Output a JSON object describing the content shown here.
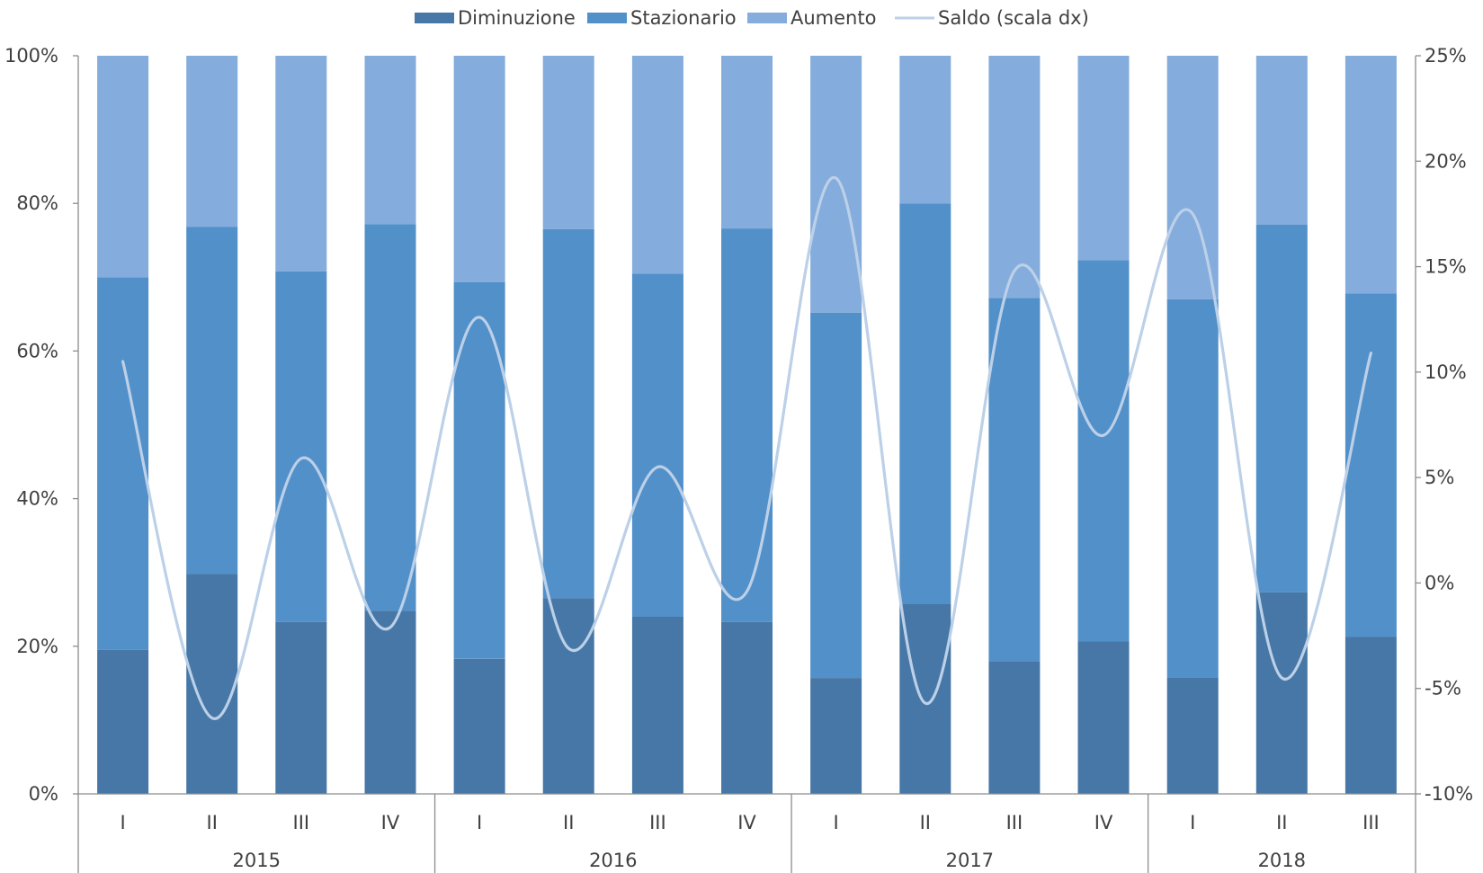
{
  "chart_data": {
    "type": "bar",
    "stacked": true,
    "combined_with": "line",
    "categories": [
      "I",
      "II",
      "III",
      "IV",
      "I",
      "II",
      "III",
      "IV",
      "I",
      "II",
      "III",
      "IV",
      "I",
      "II",
      "III"
    ],
    "category_groups": [
      {
        "label": "2015",
        "count": 4
      },
      {
        "label": "2016",
        "count": 4
      },
      {
        "label": "2017",
        "count": 4
      },
      {
        "label": "2018",
        "count": 3
      }
    ],
    "series": [
      {
        "name": "Diminuzione",
        "color": "#4677A6",
        "axis": "left",
        "values": [
          19.5,
          29.8,
          23.3,
          24.8,
          18.3,
          26.5,
          24.0,
          23.3,
          15.7,
          25.7,
          18.0,
          20.7,
          15.8,
          27.3,
          21.3
        ]
      },
      {
        "name": "Stazionario",
        "color": "#5290C9",
        "axis": "left",
        "values": [
          50.5,
          47.0,
          47.5,
          52.4,
          51.0,
          50.0,
          46.5,
          53.3,
          49.5,
          54.3,
          49.2,
          51.6,
          51.2,
          49.8,
          46.5
        ]
      },
      {
        "name": "Aumento",
        "color": "#84ACDC",
        "axis": "left",
        "values": [
          30.0,
          23.2,
          29.2,
          22.8,
          30.7,
          23.5,
          29.5,
          23.4,
          34.8,
          20.0,
          32.8,
          27.7,
          33.0,
          22.9,
          32.2
        ]
      },
      {
        "name": "Saldo (scala dx)",
        "color": "#BCD0E8",
        "axis": "right",
        "type": "line",
        "smooth": true,
        "values": [
          10.5,
          -6.4,
          5.9,
          -2.1,
          12.6,
          -3.1,
          5.5,
          -0.4,
          19.2,
          -5.7,
          14.8,
          7.0,
          17.5,
          -4.5,
          10.9
        ]
      }
    ],
    "left_axis": {
      "ylim": [
        0,
        100
      ],
      "ticks": [
        "0%",
        "20%",
        "40%",
        "60%",
        "80%",
        "100%"
      ]
    },
    "right_axis": {
      "ylim": [
        -10,
        25
      ],
      "ticks": [
        "-10%",
        "-5%",
        "0%",
        "5%",
        "10%",
        "15%",
        "20%",
        "25%"
      ]
    },
    "legend_position": "top",
    "grid": false
  }
}
